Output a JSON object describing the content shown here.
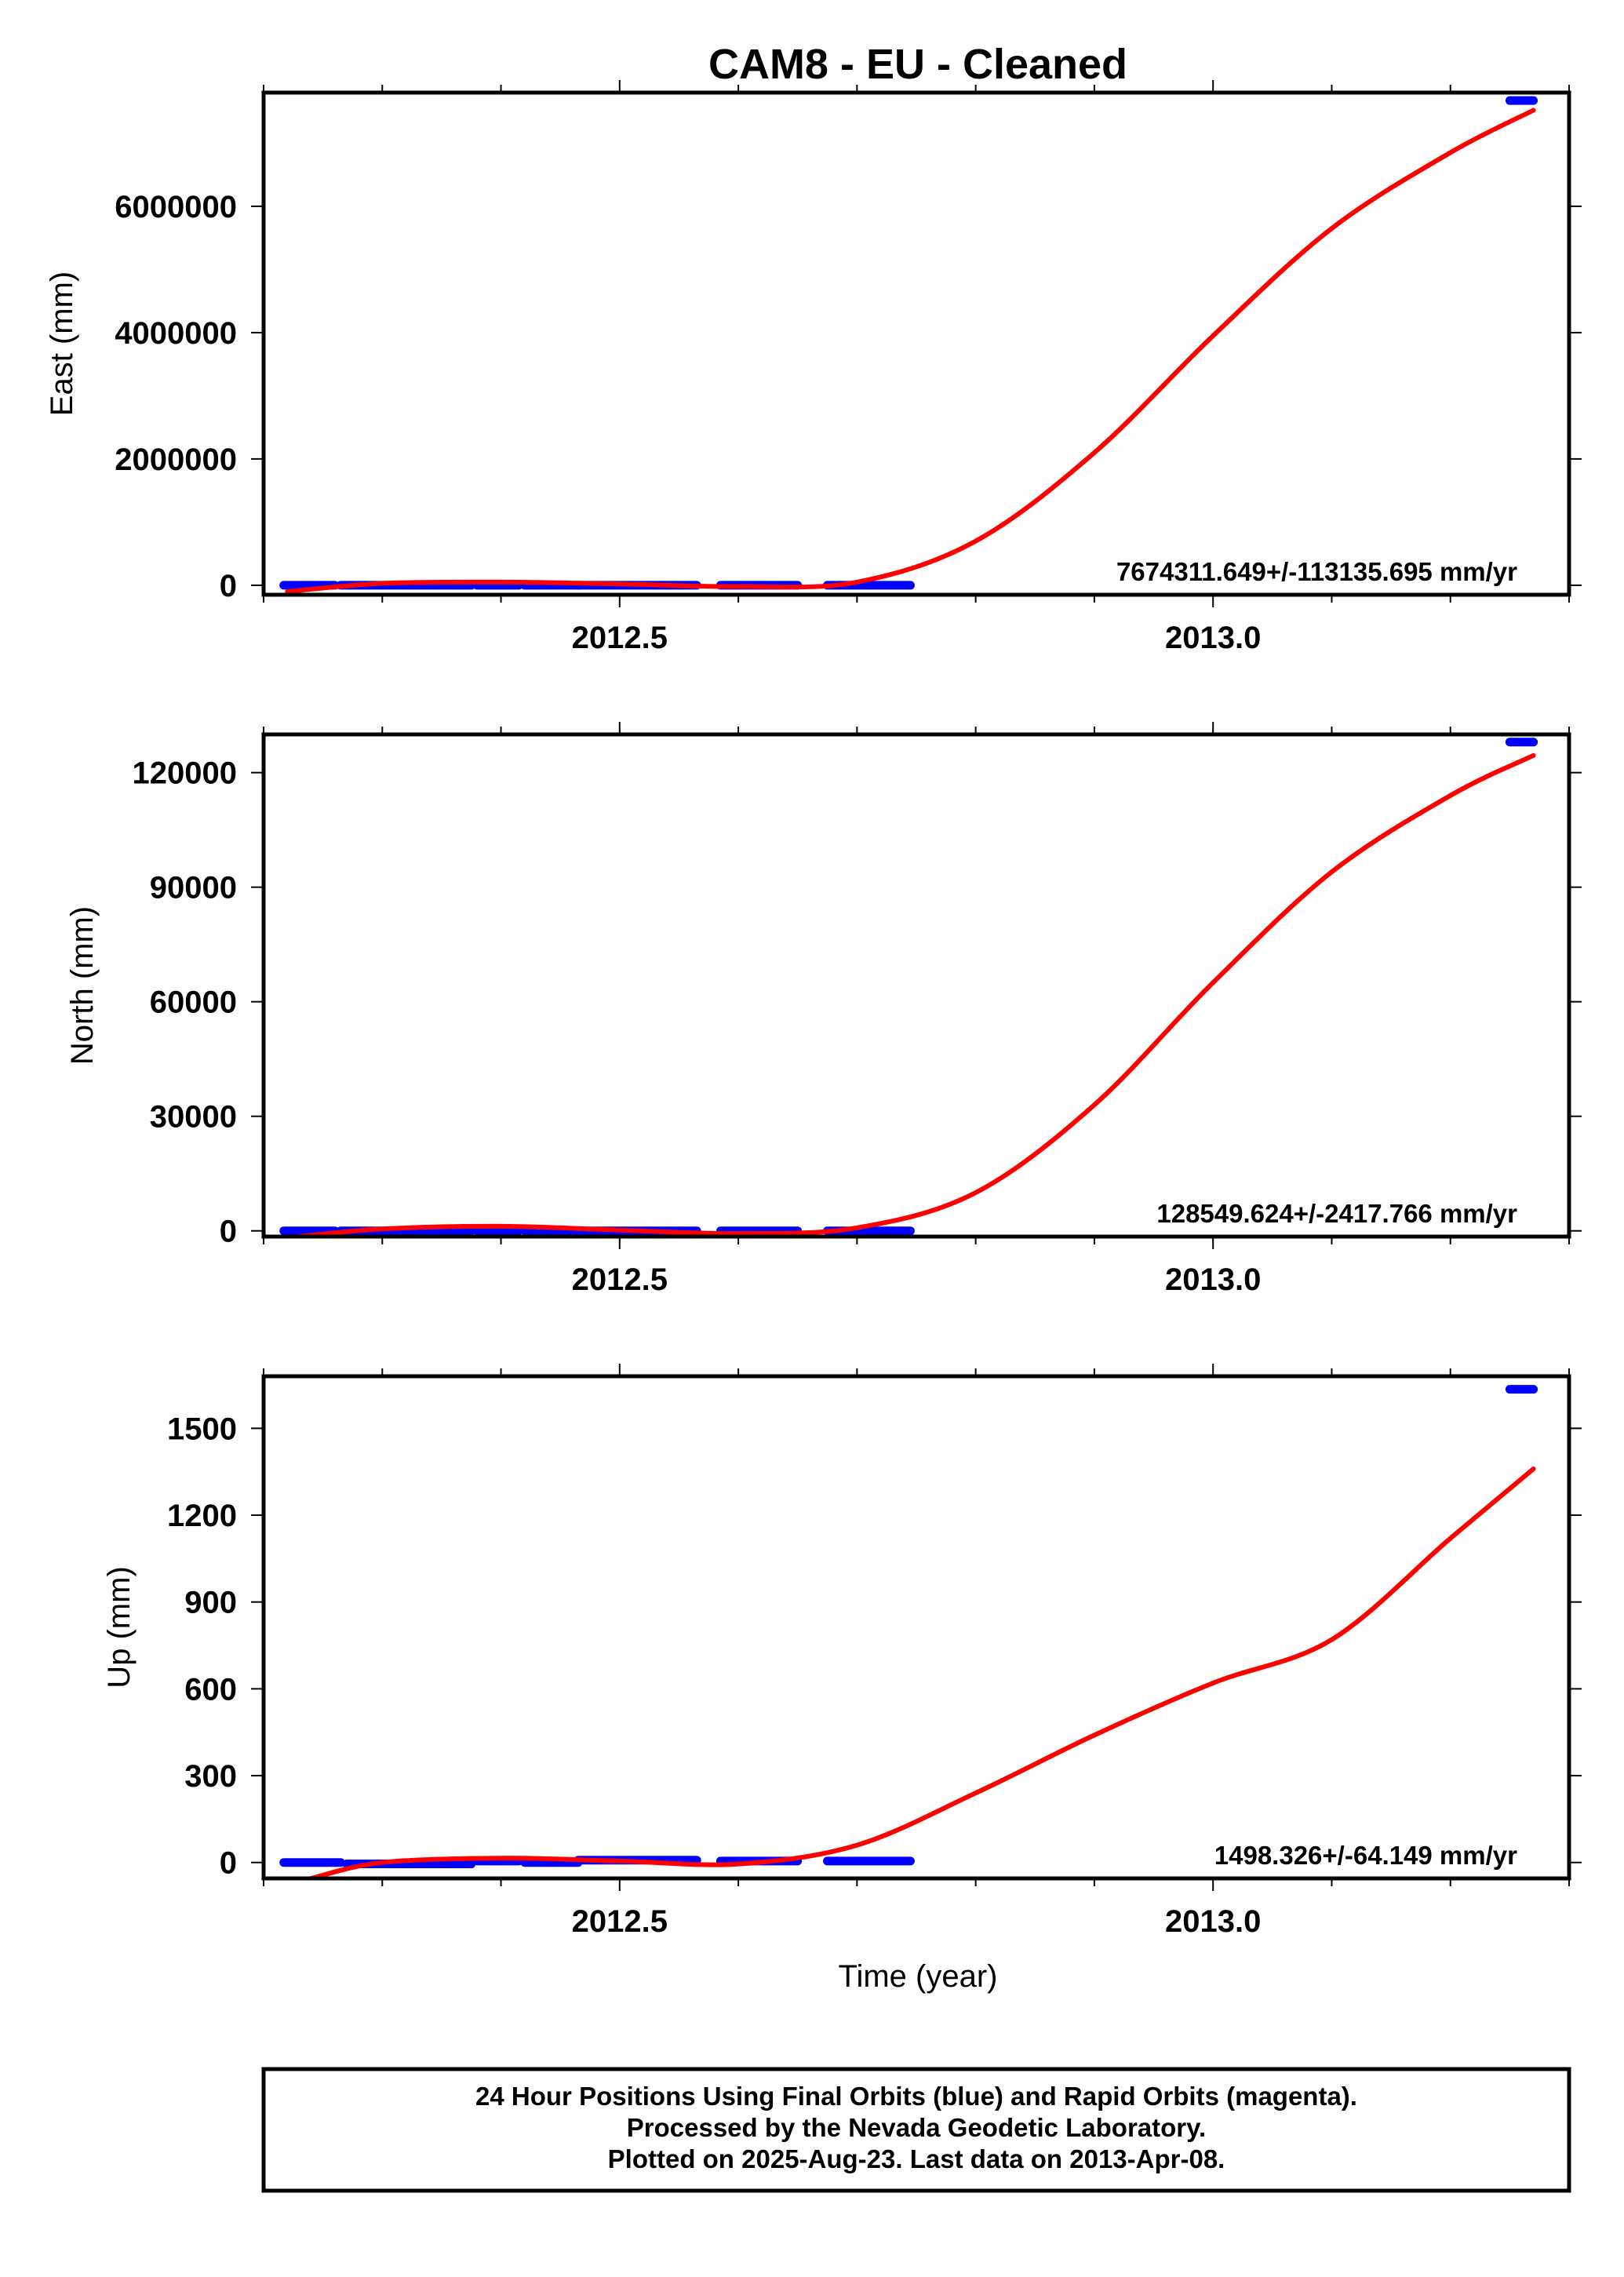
{
  "chart_data": [
    {
      "type": "scatter",
      "title": "CAM8  - EU - Cleaned",
      "ylabel": "East (mm)",
      "xlabel": "",
      "xlim": [
        2012.2,
        2013.3
      ],
      "ylim": [
        -150000,
        7800000
      ],
      "yticks": [
        0,
        2000000,
        4000000,
        6000000
      ],
      "ytick_labels": [
        "0",
        "2000000",
        "4000000",
        "6000000"
      ],
      "xticks": [
        2012.5,
        2013.0
      ],
      "xtick_labels": [
        "2012.5",
        "2013.0"
      ],
      "annotation": "7674311.649+/-113135.695 mm/yr",
      "data_segments": [
        {
          "x": [
            2012.217,
            2012.26
          ],
          "y": 0
        },
        {
          "x": [
            2012.265,
            2012.375
          ],
          "y": 0
        },
        {
          "x": [
            2012.38,
            2012.415
          ],
          "y": 0
        },
        {
          "x": [
            2012.42,
            2012.465
          ],
          "y": 0
        },
        {
          "x": [
            2012.465,
            2012.565
          ],
          "y": 0
        },
        {
          "x": [
            2012.585,
            2012.65
          ],
          "y": 0
        },
        {
          "x": [
            2012.675,
            2012.745
          ],
          "y": 0
        }
      ],
      "final_point": {
        "x": [
          2013.25,
          2013.27
        ],
        "y": 7674000
      },
      "fit": {
        "x": [
          2012.22,
          2012.3,
          2012.4,
          2012.5,
          2012.6,
          2012.7,
          2012.8,
          2012.9,
          2013.0,
          2013.1,
          2013.2,
          2013.27
        ],
        "y": [
          -100000,
          30000,
          50000,
          20000,
          -20000,
          50000,
          700000,
          2100000,
          3950000,
          5650000,
          6850000,
          7520000
        ]
      }
    },
    {
      "type": "scatter",
      "title": "",
      "ylabel": "North (mm)",
      "xlabel": "",
      "xlim": [
        2012.2,
        2013.3
      ],
      "ylim": [
        -1500,
        130000
      ],
      "yticks": [
        0,
        30000,
        60000,
        90000,
        120000
      ],
      "ytick_labels": [
        "0",
        "30000",
        "60000",
        "90000",
        "120000"
      ],
      "xticks": [
        2012.5,
        2013.0
      ],
      "xtick_labels": [
        "2012.5",
        "2013.0"
      ],
      "annotation": "128549.624+/-2417.766 mm/yr",
      "data_segments": [
        {
          "x": [
            2012.217,
            2012.26
          ],
          "y": 0
        },
        {
          "x": [
            2012.265,
            2012.375
          ],
          "y": 0
        },
        {
          "x": [
            2012.38,
            2012.415
          ],
          "y": 0
        },
        {
          "x": [
            2012.42,
            2012.465
          ],
          "y": 0
        },
        {
          "x": [
            2012.465,
            2012.565
          ],
          "y": 0
        },
        {
          "x": [
            2012.585,
            2012.65
          ],
          "y": 0
        },
        {
          "x": [
            2012.675,
            2012.745
          ],
          "y": 0
        }
      ],
      "final_point": {
        "x": [
          2013.25,
          2013.27
        ],
        "y": 128000
      },
      "fit": {
        "x": [
          2012.22,
          2012.3,
          2012.4,
          2012.5,
          2012.6,
          2012.7,
          2012.8,
          2012.9,
          2013.0,
          2013.1,
          2013.2,
          2013.27
        ],
        "y": [
          -1800,
          500,
          1200,
          200,
          -700,
          800,
          10000,
          33000,
          65000,
          94000,
          114000,
          124500
        ]
      }
    },
    {
      "type": "scatter",
      "title": "",
      "ylabel": "Up (mm)",
      "xlabel": "Time (year)",
      "xlim": [
        2012.2,
        2013.3
      ],
      "ylim": [
        -55,
        1680
      ],
      "yticks": [
        0,
        300,
        600,
        900,
        1200,
        1500
      ],
      "ytick_labels": [
        "0",
        "300",
        "600",
        "900",
        "1200",
        "1500"
      ],
      "xticks": [
        2012.5,
        2013.0
      ],
      "xtick_labels": [
        "2012.5",
        "2013.0"
      ],
      "annotation": "1498.326+/-64.149 mm/yr",
      "data_segments": [
        {
          "x": [
            2012.217,
            2012.265
          ],
          "y": 0
        },
        {
          "x": [
            2012.27,
            2012.375
          ],
          "y": -5
        },
        {
          "x": [
            2012.38,
            2012.415
          ],
          "y": 5
        },
        {
          "x": [
            2012.42,
            2012.465
          ],
          "y": 0
        },
        {
          "x": [
            2012.465,
            2012.565
          ],
          "y": 8
        },
        {
          "x": [
            2012.585,
            2012.65
          ],
          "y": 5
        },
        {
          "x": [
            2012.675,
            2012.745
          ],
          "y": 5
        }
      ],
      "final_point": {
        "x": [
          2013.25,
          2013.27
        ],
        "y": 1635
      },
      "fit": {
        "x": [
          2012.24,
          2012.3,
          2012.4,
          2012.5,
          2012.6,
          2012.7,
          2012.8,
          2012.9,
          2013.0,
          2013.1,
          2013.2,
          2013.27
        ],
        "y": [
          -55,
          0,
          15,
          5,
          -5,
          60,
          240,
          440,
          620,
          770,
          1120,
          1360
        ]
      }
    }
  ],
  "colors": {
    "data": "#0000ff",
    "fit": "#ff0000",
    "frame": "#000000"
  },
  "footer": {
    "line1": "24 Hour Positions Using Final Orbits (blue) and Rapid Orbits (magenta).",
    "line2": "Processed by the Nevada Geodetic Laboratory.",
    "line3": "Plotted on 2025-Aug-23. Last data on 2013-Apr-08."
  }
}
